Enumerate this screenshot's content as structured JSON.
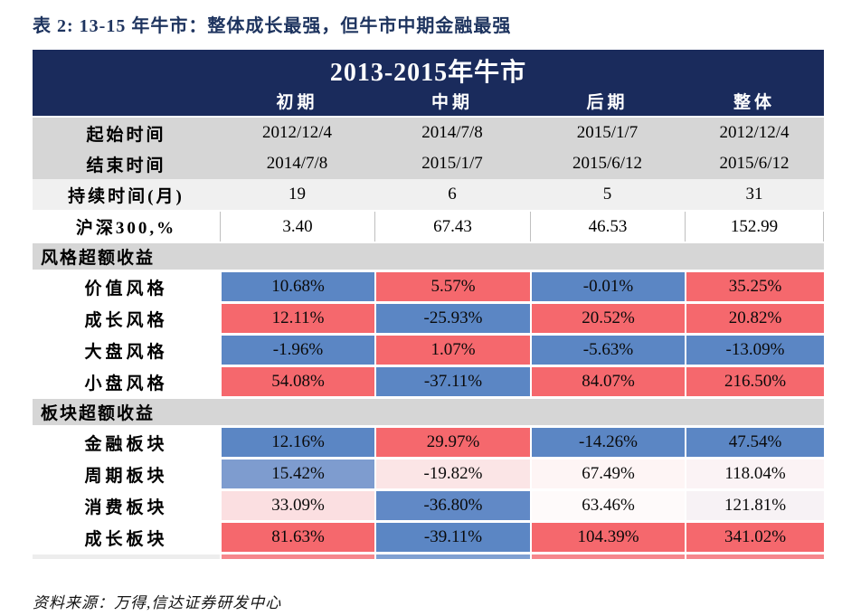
{
  "page": {
    "title": "表 2: 13-15 年牛市：整体成长最强，但牛市中期金融最强",
    "source_note": "资料来源：万得,信达证券研发中心"
  },
  "colors": {
    "header_navy": "#1A2B5C",
    "title_navy": "#1E345F",
    "band_gray": "#D6D6D6",
    "band_light": "#F0F0F0",
    "cell_blue": "#5B86C4",
    "cell_red": "#F5686D",
    "hs300_border": "#BFBFBF"
  },
  "table": {
    "title": "2013-2015年牛市",
    "column_headers": [
      "初期",
      "中期",
      "后期",
      "整体"
    ],
    "info_rows": [
      {
        "label": "起始时间",
        "values": [
          "2012/12/4",
          "2014/7/8",
          "2015/1/7",
          "2012/12/4"
        ]
      },
      {
        "label": "结束时间",
        "values": [
          "2014/7/8",
          "2015/1/7",
          "2015/6/12",
          "2015/6/12"
        ]
      },
      {
        "label": "持续时间(月)",
        "values": [
          "19",
          "6",
          "5",
          "31"
        ]
      },
      {
        "label": "沪深300,%",
        "values": [
          "3.40",
          "67.43",
          "46.53",
          "152.99"
        ]
      }
    ],
    "sections": [
      {
        "header": "风格超额收益",
        "rows": [
          {
            "label": "价值风格",
            "cells": [
              {
                "text": "10.68%",
                "bg": "#5B86C4"
              },
              {
                "text": "5.57%",
                "bg": "#F5686D"
              },
              {
                "text": "-0.01%",
                "bg": "#5B86C4"
              },
              {
                "text": "35.25%",
                "bg": "#F5686D"
              }
            ]
          },
          {
            "label": "成长风格",
            "cells": [
              {
                "text": "12.11%",
                "bg": "#F5686D"
              },
              {
                "text": "-25.93%",
                "bg": "#5B86C4"
              },
              {
                "text": "20.52%",
                "bg": "#F5686D"
              },
              {
                "text": "20.82%",
                "bg": "#F5686D"
              }
            ]
          },
          {
            "label": "大盘风格",
            "cells": [
              {
                "text": "-1.96%",
                "bg": "#5B86C4"
              },
              {
                "text": "1.07%",
                "bg": "#F5686D"
              },
              {
                "text": "-5.63%",
                "bg": "#5B86C4"
              },
              {
                "text": "-13.09%",
                "bg": "#5B86C4"
              }
            ]
          },
          {
            "label": "小盘风格",
            "cells": [
              {
                "text": "54.08%",
                "bg": "#F5686D"
              },
              {
                "text": "-37.11%",
                "bg": "#5B86C4"
              },
              {
                "text": "84.07%",
                "bg": "#F5686D"
              },
              {
                "text": "216.50%",
                "bg": "#F5686D"
              }
            ]
          }
        ]
      },
      {
        "header": "板块超额收益",
        "rows": [
          {
            "label": "金融板块",
            "cells": [
              {
                "text": "12.16%",
                "bg": "#5B86C4"
              },
              {
                "text": "29.97%",
                "bg": "#F5686D"
              },
              {
                "text": "-14.26%",
                "bg": "#5B86C4"
              },
              {
                "text": "47.54%",
                "bg": "#5B86C4"
              }
            ]
          },
          {
            "label": "周期板块",
            "cells": [
              {
                "text": "15.42%",
                "bg": "#7E9CCF"
              },
              {
                "text": "-19.82%",
                "bg": "#FBE5E6"
              },
              {
                "text": "67.49%",
                "bg": "#FEF5F5"
              },
              {
                "text": "118.04%",
                "bg": "#FBF3F5"
              }
            ]
          },
          {
            "label": "消费板块",
            "cells": [
              {
                "text": "33.09%",
                "bg": "#FBDFE1"
              },
              {
                "text": "-36.80%",
                "bg": "#6189C6"
              },
              {
                "text": "63.46%",
                "bg": "#FEFAFA"
              },
              {
                "text": "121.81%",
                "bg": "#F7F2F5"
              }
            ]
          },
          {
            "label": "成长板块",
            "cells": [
              {
                "text": "81.63%",
                "bg": "#F5686D"
              },
              {
                "text": "-39.11%",
                "bg": "#5B86C4"
              },
              {
                "text": "104.39%",
                "bg": "#F5686D"
              },
              {
                "text": "341.02%",
                "bg": "#F5686D"
              }
            ]
          }
        ]
      }
    ],
    "bottom_sliver": {
      "segments": [
        "#EDEDED",
        "#F6878C",
        "#7FA0D2",
        "#F6878C",
        "#F6878C"
      ]
    }
  },
  "chart_data": {
    "type": "table",
    "title": "2013-2015年牛市",
    "caption": "表 2: 13-15 年牛市：整体成长最强，但牛市中期金融最强",
    "source": "资料来源：万得,信达证券研发中心",
    "columns": [
      "",
      "初期",
      "中期",
      "后期",
      "整体"
    ],
    "rows": [
      [
        "起始时间",
        "2012/12/4",
        "2014/7/8",
        "2015/1/7",
        "2012/12/4"
      ],
      [
        "结束时间",
        "2014/7/8",
        "2015/1/7",
        "2015/6/12",
        "2015/6/12"
      ],
      [
        "持续时间(月)",
        "19",
        "6",
        "5",
        "31"
      ],
      [
        "沪深300,%",
        "3.40",
        "67.43",
        "46.53",
        "152.99"
      ],
      [
        "风格超额收益",
        "",
        "",
        "",
        ""
      ],
      [
        "价值风格",
        "10.68%",
        "5.57%",
        "-0.01%",
        "35.25%"
      ],
      [
        "成长风格",
        "12.11%",
        "-25.93%",
        "20.52%",
        "20.82%"
      ],
      [
        "大盘风格",
        "-1.96%",
        "1.07%",
        "-5.63%",
        "-13.09%"
      ],
      [
        "小盘风格",
        "54.08%",
        "-37.11%",
        "84.07%",
        "216.50%"
      ],
      [
        "板块超额收益",
        "",
        "",
        "",
        ""
      ],
      [
        "金融板块",
        "12.16%",
        "29.97%",
        "-14.26%",
        "47.54%"
      ],
      [
        "周期板块",
        "15.42%",
        "-19.82%",
        "67.49%",
        "118.04%"
      ],
      [
        "消费板块",
        "33.09%",
        "-36.80%",
        "63.46%",
        "121.81%"
      ],
      [
        "成长板块",
        "81.63%",
        "-39.11%",
        "104.39%",
        "341.02%"
      ]
    ],
    "legend_note": "cell background encodes relative performance: blue = weaker / negative vs peers, red = stronger, pale tints = intermediate"
  }
}
